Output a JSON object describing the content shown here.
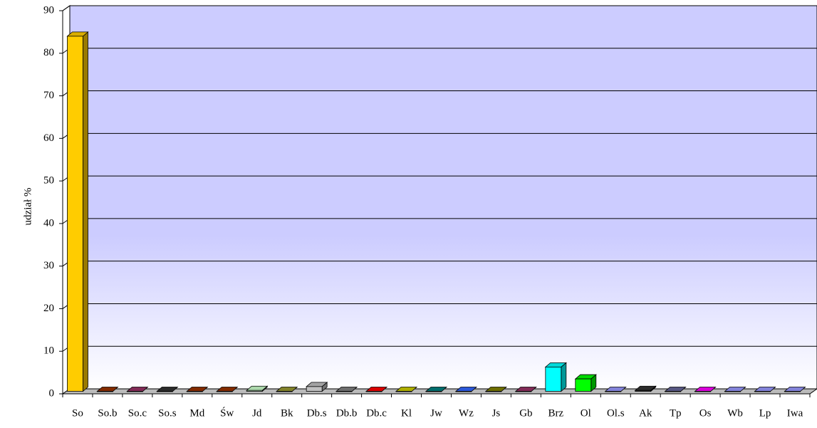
{
  "chart_data": {
    "type": "bar3d",
    "y_label": "udział %",
    "categories": [
      "So",
      "So.b",
      "So.c",
      "So.s",
      "Md",
      "Św",
      "Jd",
      "Bk",
      "Db.s",
      "Db.b",
      "Db.c",
      "Kl",
      "Jw",
      "Wz",
      "Js",
      "Gb",
      "Brz",
      "Ol",
      "Ol.s",
      "Ak",
      "Tp",
      "Os",
      "Wb",
      "Lp",
      "Iwa"
    ],
    "values": [
      84,
      0.2,
      0.3,
      0.1,
      0.4,
      0.4,
      0.8,
      0.5,
      1.7,
      0.5,
      0.3,
      0.1,
      0.2,
      0.1,
      0.3,
      0.3,
      6.3,
      3.5,
      0.1,
      0.8,
      0.3,
      0.3,
      0.1,
      0.1,
      0.1
    ],
    "colors": [
      "#ffcc00",
      "#993300",
      "#993366",
      "#333333",
      "#993300",
      "#993300",
      "#ccffcc",
      "#999933",
      "#c0c0c0",
      "#808080",
      "#ff0000",
      "#cccc00",
      "#008080",
      "#3366ff",
      "#808000",
      "#993366",
      "#00ffff",
      "#00ff00",
      "#9999ff",
      "#333333",
      "#666699",
      "#ff00ff",
      "#9999ff",
      "#9999ff",
      "#9999ff"
    ],
    "ylim": [
      0,
      90
    ],
    "yticks": [
      0,
      10,
      20,
      30,
      40,
      50,
      60,
      70,
      80,
      90
    ],
    "grid": true
  }
}
